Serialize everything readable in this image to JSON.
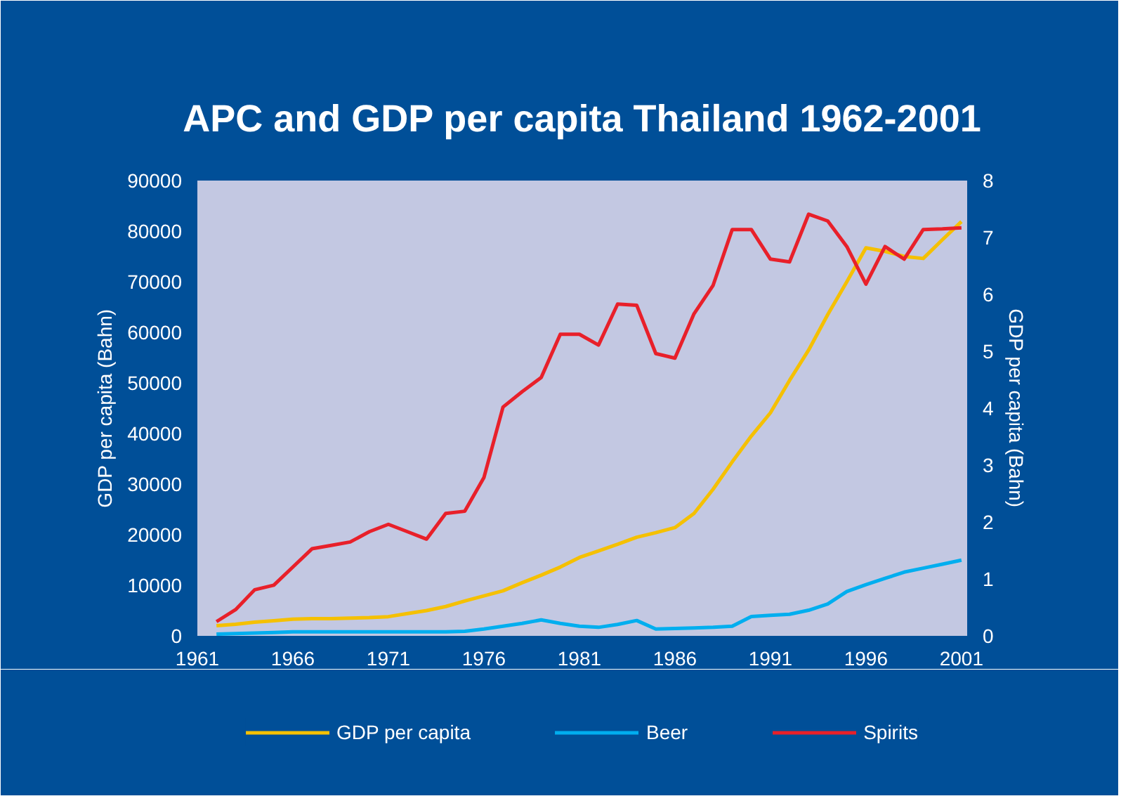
{
  "chart_data": {
    "type": "line",
    "title": "APC and GDP per capita Thailand 1962-2001",
    "ylabel": "GDP per capita (Bahn)",
    "y2label": "GDP per capita (Bahn)",
    "x": [
      1962,
      1963,
      1964,
      1965,
      1966,
      1967,
      1968,
      1969,
      1970,
      1971,
      1972,
      1973,
      1974,
      1975,
      1976,
      1977,
      1978,
      1979,
      1980,
      1981,
      1982,
      1983,
      1984,
      1985,
      1986,
      1987,
      1988,
      1989,
      1990,
      1991,
      1992,
      1993,
      1994,
      1995,
      1996,
      1997,
      1998,
      1999,
      2000,
      2001
    ],
    "series": [
      {
        "name": "GDP per capita",
        "color": "#f5c000",
        "values": [
          2000,
          2300,
          2700,
          3000,
          3300,
          3400,
          3400,
          3500,
          3600,
          3800,
          4400,
          5000,
          5800,
          6900,
          7900,
          8900,
          10500,
          12000,
          13600,
          15500,
          16800,
          18100,
          19500,
          20400,
          21400,
          24200,
          29000,
          34400,
          39500,
          44100,
          50500,
          56500,
          63500,
          70000,
          76700,
          76000,
          75000,
          74600,
          78300,
          81900
        ]
      },
      {
        "name": "Beer",
        "color": "#00aeef",
        "axis": "y2",
        "values": [
          0.03,
          0.04,
          0.05,
          0.06,
          0.07,
          0.07,
          0.07,
          0.07,
          0.07,
          0.07,
          0.07,
          0.07,
          0.07,
          0.08,
          0.12,
          0.17,
          0.22,
          0.28,
          0.22,
          0.17,
          0.15,
          0.2,
          0.27,
          0.12,
          0.13,
          0.14,
          0.15,
          0.17,
          0.34,
          0.36,
          0.38,
          0.45,
          0.56,
          0.78,
          0.9,
          1.01,
          1.12,
          1.19,
          1.26,
          1.33
        ]
      },
      {
        "name": "Spirits",
        "color": "#e8202a",
        "axis": "y2",
        "values": [
          0.25,
          0.46,
          0.81,
          0.89,
          1.21,
          1.53,
          1.59,
          1.65,
          1.83,
          1.96,
          1.83,
          1.7,
          2.15,
          2.19,
          2.78,
          4.02,
          4.29,
          4.54,
          5.3,
          5.3,
          5.11,
          5.83,
          5.81,
          4.96,
          4.88,
          5.66,
          6.16,
          7.14,
          7.14,
          6.62,
          6.57,
          7.41,
          7.29,
          6.84,
          6.18,
          6.84,
          6.62,
          7.14,
          7.15,
          7.17
        ]
      }
    ],
    "xlim": [
      1961,
      2001.3
    ],
    "xticks": [
      1961,
      1966,
      1971,
      1976,
      1981,
      1986,
      1991,
      1996,
      2001
    ],
    "ylim": [
      0,
      90000
    ],
    "yticks": [
      0,
      10000,
      20000,
      30000,
      40000,
      50000,
      60000,
      70000,
      80000,
      90000
    ],
    "y2lim": [
      0,
      8
    ],
    "y2ticks": [
      0,
      1,
      2,
      3,
      4,
      5,
      6,
      7,
      8
    ],
    "legend": "bottom"
  }
}
